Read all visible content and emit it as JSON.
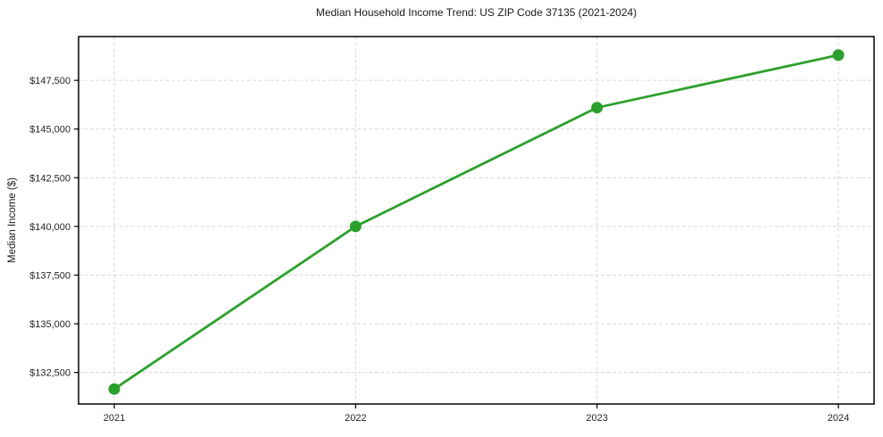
{
  "figure": {
    "title": "Median Household Income Trend: US ZIP Code 37135 (2021-2024)",
    "y_axis_label": "Median Income ($)"
  },
  "chart_data": {
    "type": "line",
    "title": "Median Household Income Trend: US ZIP Code 37135 (2021-2024)",
    "xlabel": "",
    "ylabel": "Median Income ($)",
    "categories": [
      "2021",
      "2022",
      "2023",
      "2024"
    ],
    "series": [
      {
        "name": "Median Household Income",
        "values": [
          131650,
          140000,
          146100,
          148800
        ],
        "color": "#2ca02c",
        "marker": "circle"
      }
    ],
    "yticks": [
      132500,
      135000,
      137500,
      140000,
      142500,
      145000,
      147500
    ],
    "ytick_labels": [
      "$132,500",
      "$135,000",
      "$137,500",
      "$140,000",
      "$142,500",
      "$145,000",
      "$147,500"
    ],
    "ylim": [
      130880,
      149750
    ],
    "grid": true,
    "grid_style": "dashed",
    "grid_color": "#d9d9d9",
    "axis_color": "#000000",
    "legend": "none",
    "background": "#ffffff"
  }
}
